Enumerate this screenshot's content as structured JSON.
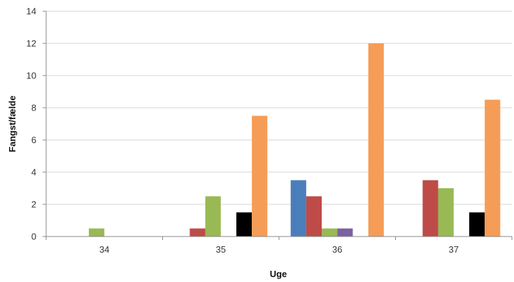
{
  "chart_data": {
    "type": "bar",
    "title": "",
    "xlabel": "Uge",
    "ylabel": "Fangst/fælde",
    "categories": [
      "34",
      "35",
      "36",
      "37"
    ],
    "ylim": [
      0,
      14
    ],
    "yticks": [
      0,
      2,
      4,
      6,
      8,
      10,
      12,
      14
    ],
    "grid": true,
    "legend": "none",
    "series": [
      {
        "color": "#4a7ebb",
        "values": [
          0,
          0,
          3.5,
          0
        ]
      },
      {
        "color": "#be4b48",
        "values": [
          0,
          0.5,
          2.5,
          3.5
        ]
      },
      {
        "color": "#98b954",
        "values": [
          0.5,
          2.5,
          0.5,
          3.0
        ]
      },
      {
        "color": "#7d60a0",
        "values": [
          0,
          0,
          0.5,
          0
        ]
      },
      {
        "color": "#000000",
        "values": [
          0,
          1.5,
          0,
          1.5
        ]
      },
      {
        "color": "#f59d56",
        "values": [
          0,
          7.5,
          12,
          8.5
        ]
      }
    ]
  }
}
